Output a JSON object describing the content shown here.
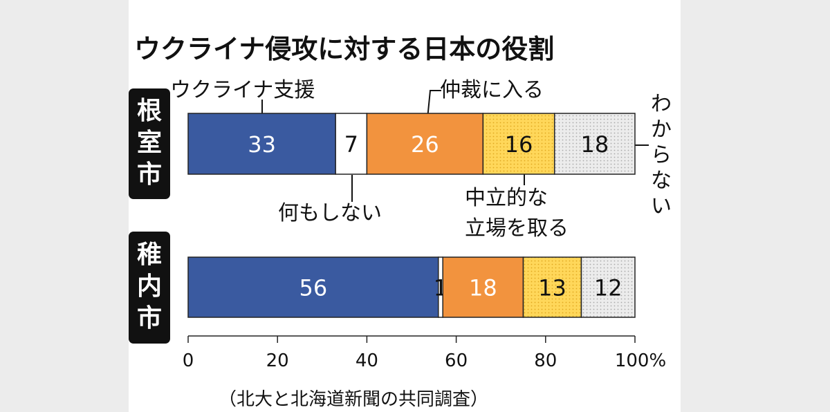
{
  "chart_data": {
    "type": "bar",
    "orientation": "horizontal",
    "stacked": true,
    "title": "ウクライナ侵攻に対する日本の役割",
    "categories": [
      "根室市",
      "稚内市"
    ],
    "series": [
      {
        "name": "ウクライナ支援",
        "values": [
          33,
          56
        ],
        "color": "#3a5aa0",
        "label_color": "#ffffff"
      },
      {
        "name": "何もしない",
        "values": [
          7,
          1
        ],
        "color": "#ffffff",
        "label_color": "#111111"
      },
      {
        "name": "仲裁に入る",
        "values": [
          26,
          18
        ],
        "color": "#f2933e",
        "label_color": "#ffffff"
      },
      {
        "name": "中立的な立場を取る",
        "values": [
          16,
          13
        ],
        "color": "#ffd75a",
        "label_color": "#111111"
      },
      {
        "name": "わからない",
        "values": [
          18,
          12
        ],
        "color": "#e3e3e3",
        "label_color": "#111111"
      }
    ],
    "xlim": [
      0,
      100
    ],
    "xticks": [
      "0",
      "20",
      "40",
      "60",
      "80",
      "100%"
    ],
    "xtick_values": [
      0,
      20,
      40,
      60,
      80,
      100
    ],
    "labels": {
      "support": "ウクライナ支援",
      "nothing": "何もしない",
      "mediate": "仲裁に入る",
      "neutral_line1": "中立的な",
      "neutral_line2": "立場を取る",
      "unknown": "わからない"
    },
    "source": "（北大と北海道新聞の共同調査）"
  }
}
